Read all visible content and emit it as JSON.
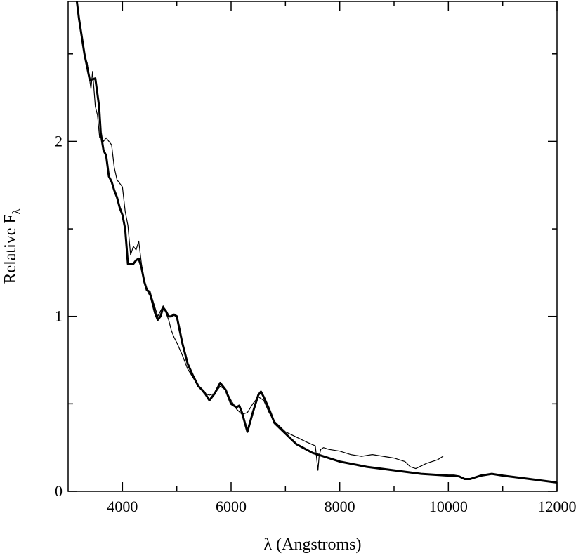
{
  "chart_data": {
    "type": "line",
    "xlabel_symbol": "λ",
    "xlabel_text": " (Angstroms)",
    "ylabel_main": "Relative F",
    "ylabel_sub": "λ",
    "xlim": [
      3000,
      12000
    ],
    "ylim": [
      0,
      2.8
    ],
    "x_ticks": [
      4000,
      6000,
      8000,
      10000,
      12000
    ],
    "x_minor_ticks": [
      5000,
      7000,
      9000,
      11000
    ],
    "y_ticks": [
      0,
      1,
      2
    ],
    "y_minor_ticks": [
      0.5,
      1.5,
      2.5
    ],
    "grid": false,
    "series": [
      {
        "style": "observed-thin",
        "stroke_width": 1.2,
        "x": [
          3300,
          3350,
          3420,
          3450,
          3500,
          3540,
          3580,
          3600,
          3650,
          3700,
          3750,
          3800,
          3850,
          3900,
          3950,
          4000,
          4050,
          4100,
          4150,
          4200,
          4250,
          4300,
          4350,
          4400,
          4450,
          4500,
          4550,
          4600,
          4650,
          4700,
          4750,
          4800,
          4850,
          4900,
          4950,
          5000,
          5100,
          5200,
          5300,
          5400,
          5500,
          5600,
          5700,
          5800,
          5900,
          6000,
          6100,
          6200,
          6300,
          6400,
          6500,
          6600,
          6700,
          6800,
          6900,
          7000,
          7200,
          7400,
          7550,
          7600,
          7620,
          7650,
          7700,
          7800,
          8000,
          8200,
          8400,
          8600,
          8800,
          9000,
          9200,
          9300,
          9400,
          9600,
          9800,
          9900
        ],
        "y": [
          2.49,
          2.45,
          2.3,
          2.4,
          2.2,
          2.15,
          2.02,
          2.03,
          2.0,
          2.02,
          2.0,
          1.98,
          1.85,
          1.78,
          1.76,
          1.74,
          1.6,
          1.52,
          1.35,
          1.4,
          1.38,
          1.43,
          1.3,
          1.2,
          1.15,
          1.12,
          1.1,
          1.05,
          1.0,
          1.03,
          1.06,
          1.02,
          0.98,
          0.92,
          0.88,
          0.85,
          0.78,
          0.7,
          0.65,
          0.6,
          0.56,
          0.55,
          0.56,
          0.6,
          0.58,
          0.52,
          0.47,
          0.44,
          0.45,
          0.5,
          0.54,
          0.52,
          0.45,
          0.4,
          0.37,
          0.34,
          0.31,
          0.28,
          0.26,
          0.12,
          0.2,
          0.24,
          0.25,
          0.24,
          0.23,
          0.21,
          0.2,
          0.21,
          0.2,
          0.19,
          0.17,
          0.14,
          0.13,
          0.16,
          0.18,
          0.2
        ]
      },
      {
        "style": "model-thick",
        "stroke_width": 3,
        "x": [
          3160,
          3200,
          3300,
          3400,
          3500,
          3570,
          3600,
          3650,
          3700,
          3750,
          3800,
          3850,
          3900,
          3950,
          4000,
          4050,
          4100,
          4150,
          4200,
          4250,
          4300,
          4350,
          4400,
          4450,
          4500,
          4550,
          4600,
          4650,
          4700,
          4750,
          4800,
          4850,
          4900,
          4950,
          5000,
          5100,
          5200,
          5300,
          5400,
          5500,
          5600,
          5700,
          5800,
          5900,
          6000,
          6100,
          6150,
          6200,
          6300,
          6400,
          6500,
          6550,
          6600,
          6700,
          6800,
          7000,
          7200,
          7500,
          8000,
          8500,
          9000,
          9500,
          10000,
          10100,
          10200,
          10300,
          10400,
          10600,
          10800,
          11000,
          11500,
          12000
        ],
        "y": [
          2.8,
          2.7,
          2.5,
          2.35,
          2.36,
          2.2,
          2.05,
          1.95,
          1.92,
          1.8,
          1.77,
          1.72,
          1.68,
          1.62,
          1.58,
          1.5,
          1.3,
          1.3,
          1.3,
          1.32,
          1.33,
          1.28,
          1.2,
          1.15,
          1.14,
          1.08,
          1.02,
          0.98,
          1.0,
          1.05,
          1.03,
          1.0,
          1.0,
          1.01,
          1.0,
          0.85,
          0.73,
          0.66,
          0.6,
          0.57,
          0.52,
          0.56,
          0.62,
          0.58,
          0.5,
          0.48,
          0.49,
          0.45,
          0.34,
          0.45,
          0.55,
          0.57,
          0.54,
          0.47,
          0.39,
          0.33,
          0.27,
          0.22,
          0.17,
          0.14,
          0.12,
          0.1,
          0.09,
          0.09,
          0.085,
          0.07,
          0.07,
          0.09,
          0.1,
          0.09,
          0.07,
          0.05
        ]
      }
    ]
  }
}
